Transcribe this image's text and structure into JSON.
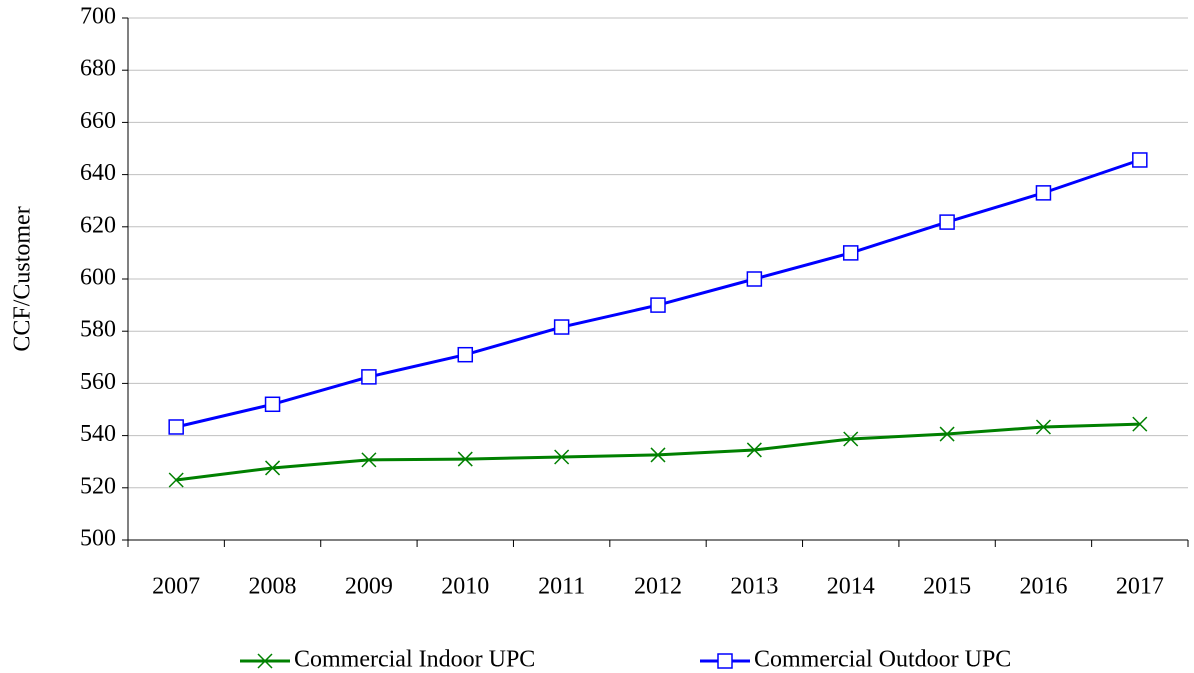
{
  "chart_data": {
    "type": "line",
    "y_label": "CCF/Customer",
    "categories": [
      "2007",
      "2008",
      "2009",
      "2010",
      "2011",
      "2012",
      "2013",
      "2014",
      "2015",
      "2016",
      "2017"
    ],
    "series": [
      {
        "name": "Commercial Indoor UPC",
        "color": "#008000",
        "marker": "x",
        "values": [
          523,
          527.6,
          530.7,
          531,
          531.8,
          532.6,
          534.5,
          538.7,
          540.6,
          543.3,
          544.4
        ]
      },
      {
        "name": "Commercial Outdoor UPC",
        "color": "#0000ff",
        "marker": "square",
        "values": [
          543.3,
          552,
          562.5,
          571,
          581.6,
          590,
          600,
          610,
          621.8,
          633,
          645.6
        ]
      }
    ],
    "ylim": [
      500,
      700
    ],
    "yticks": [
      500,
      520,
      540,
      560,
      580,
      600,
      620,
      640,
      660,
      680,
      700
    ],
    "grid": true,
    "legend": "bottom"
  }
}
